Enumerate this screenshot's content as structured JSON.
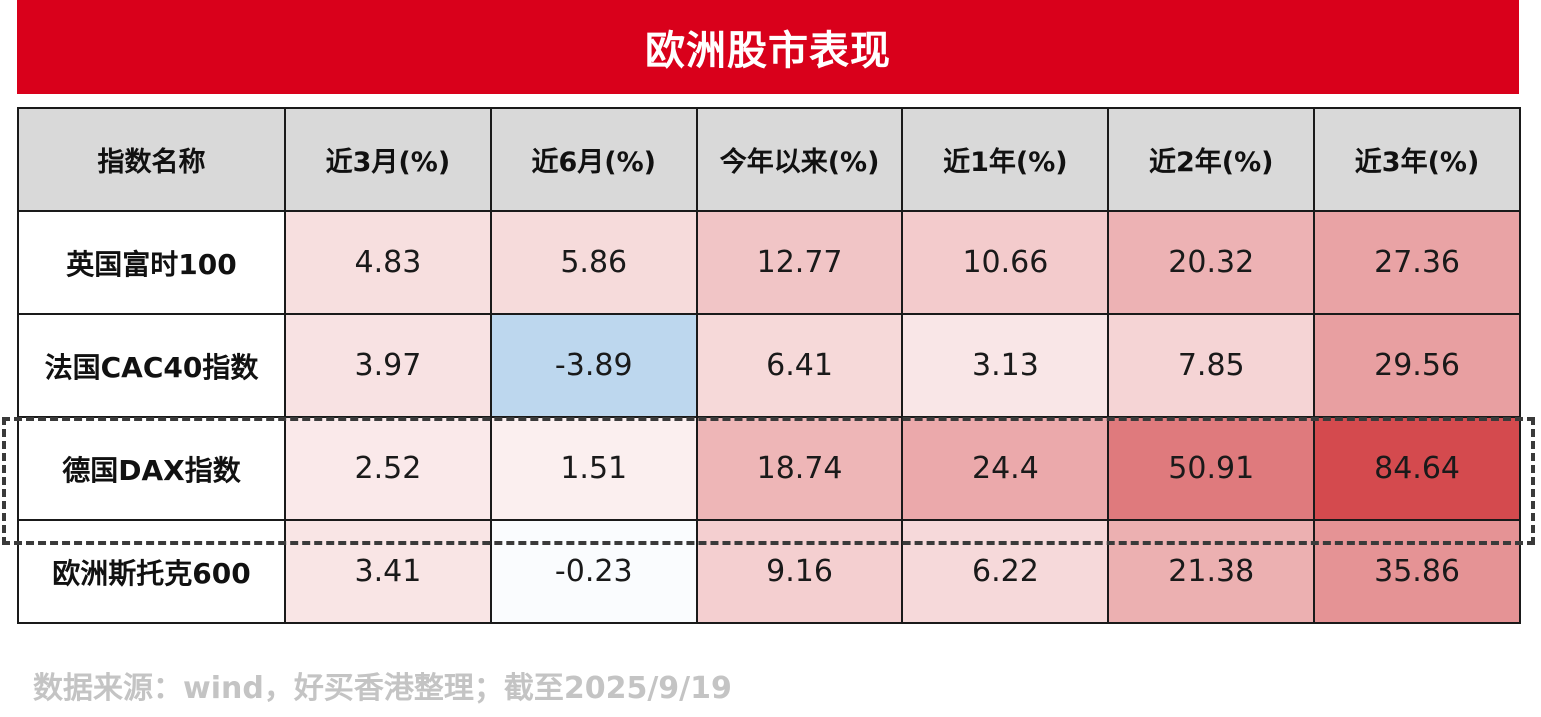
{
  "title": "欧洲股市表现",
  "chart_data": {
    "type": "table",
    "columns": [
      "指数名称",
      "近3月(%)",
      "近6月(%)",
      "今年以来(%)",
      "近1年(%)",
      "近2年(%)",
      "近3年(%)"
    ],
    "rows": [
      {
        "name": "英国富时100",
        "values": [
          "4.83",
          "5.86",
          "12.77",
          "10.66",
          "20.32",
          "27.36"
        ]
      },
      {
        "name": "法国CAC40指数",
        "values": [
          "3.97",
          "-3.89",
          "6.41",
          "3.13",
          "7.85",
          "29.56"
        ]
      },
      {
        "name": "德国DAX指数",
        "values": [
          "2.52",
          "1.51",
          "18.74",
          "24.4",
          "50.91",
          "84.64"
        ],
        "highlighted": true
      },
      {
        "name": "欧洲斯托克600",
        "values": [
          "3.41",
          "-0.23",
          "9.16",
          "6.22",
          "21.38",
          "35.86"
        ]
      }
    ],
    "color_scale": {
      "positive_max": "#d44a4e",
      "zero": "#ffffff",
      "negative_max": "#bdd7ee",
      "positive_scale_max": 84.64,
      "negative_scale_min": -3.89
    }
  },
  "source_note": "数据来源：wind，好买香港整理；截至2025/9/19",
  "colors": {
    "title_bg": "#d9001b",
    "header_bg": "#d9d9d9",
    "border": "#1a1a1a",
    "source_text": "#c4c4c4",
    "highlight_border": "#3a3a3a"
  }
}
